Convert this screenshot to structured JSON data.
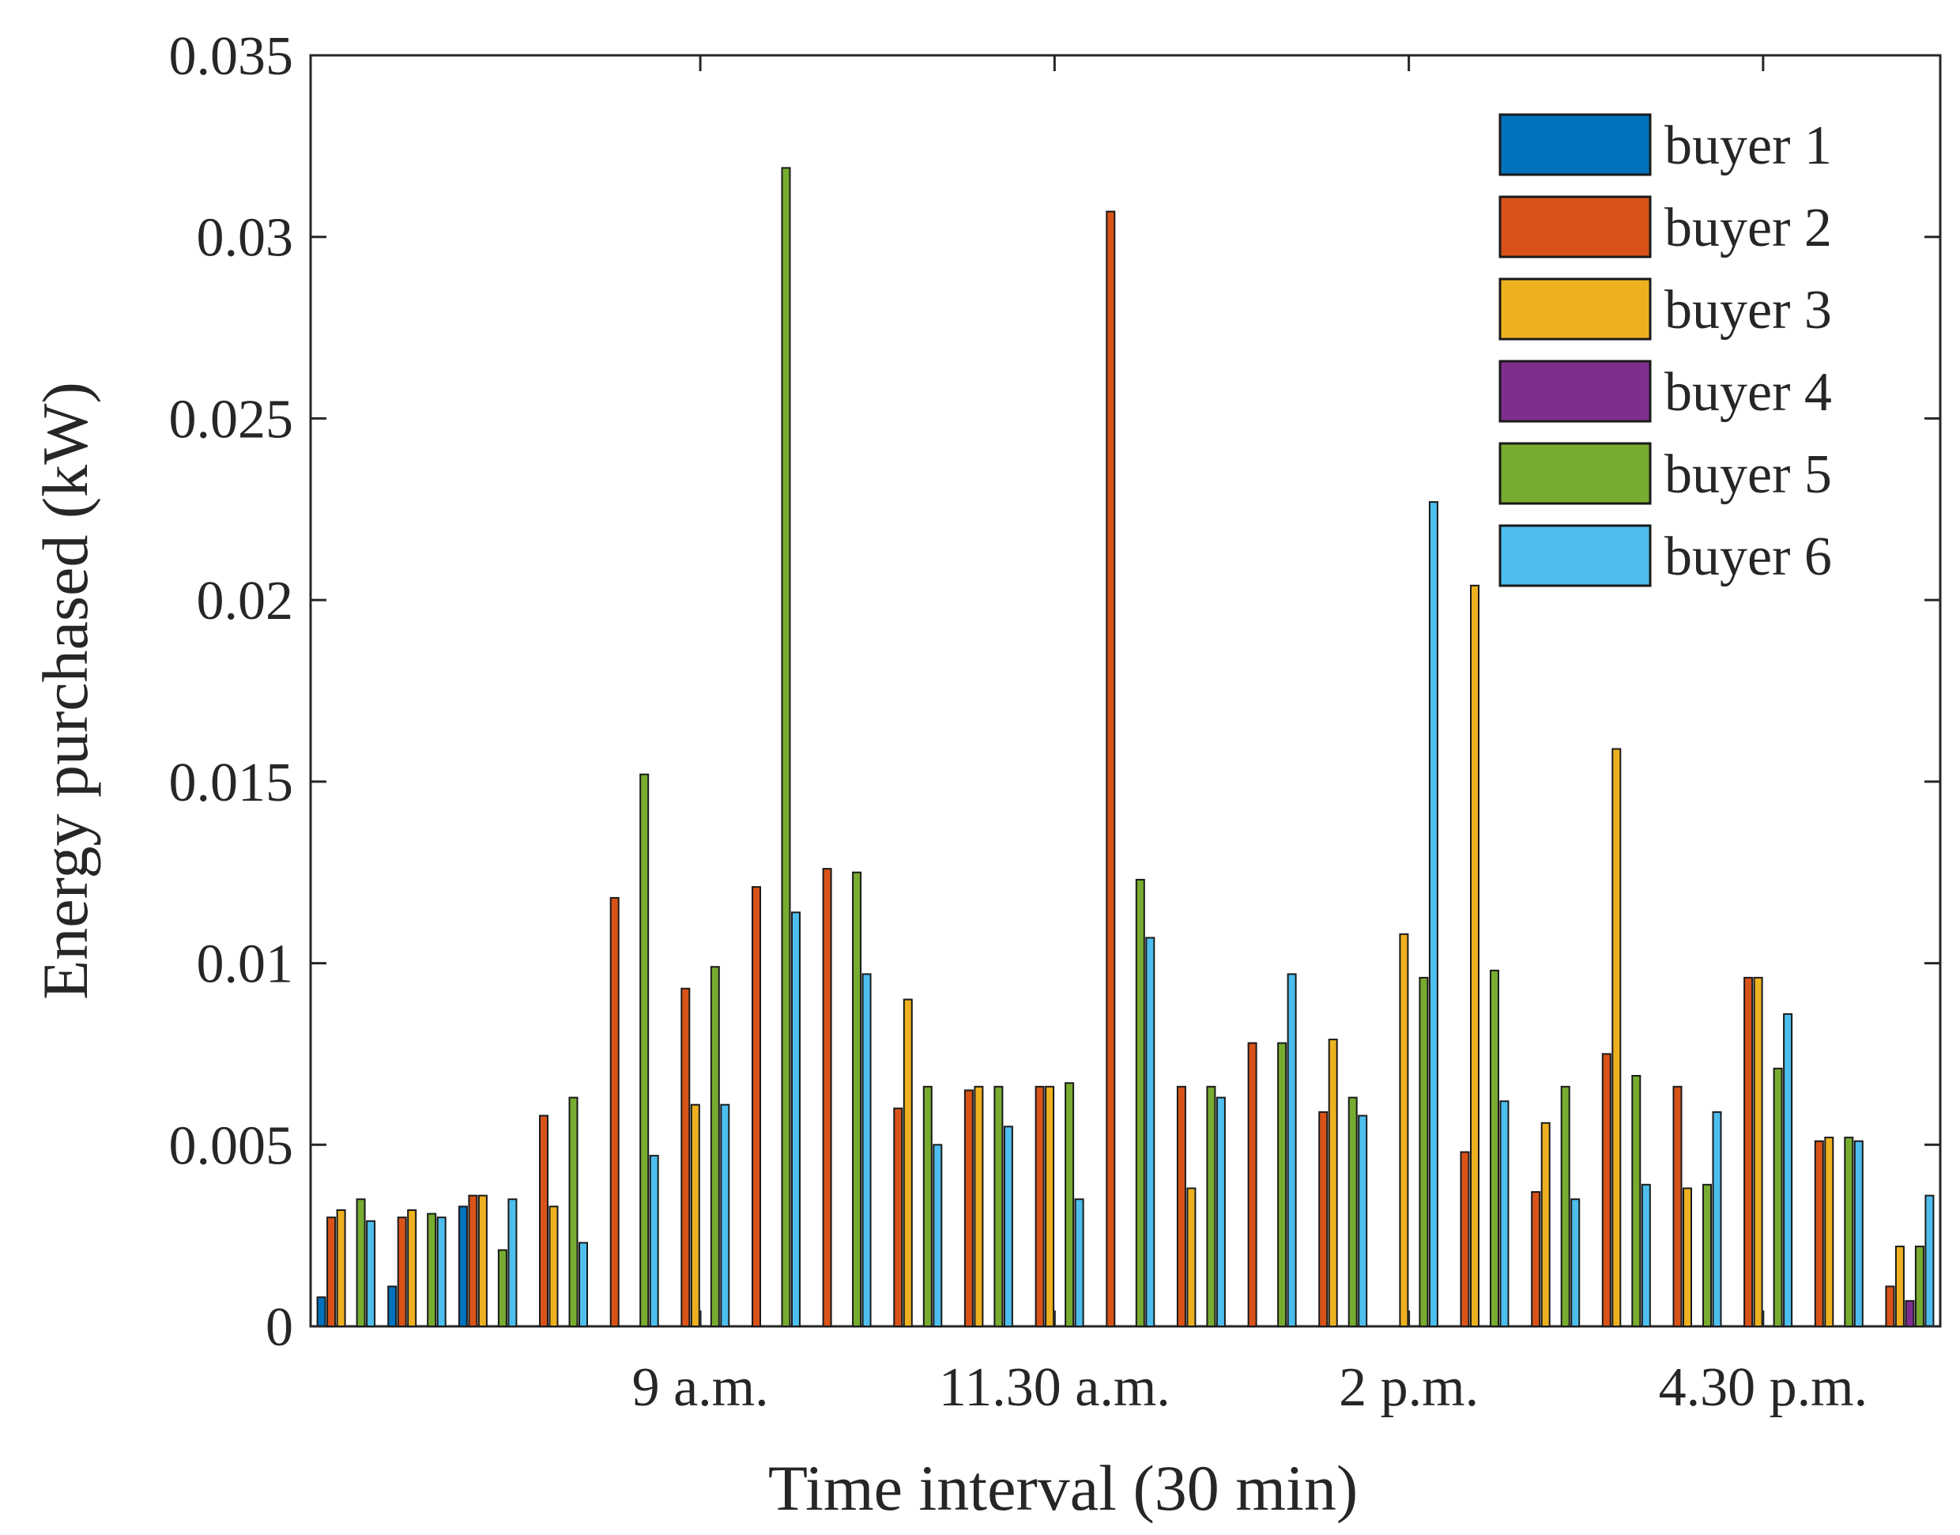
{
  "chart_data": {
    "type": "bar",
    "xlabel": "Time interval (30 min)",
    "ylabel": "Energy purchased (kW)",
    "ylim": [
      0,
      0.035
    ],
    "yticks": [
      0,
      0.005,
      0.01,
      0.015,
      0.02,
      0.025,
      0.03,
      0.035
    ],
    "ytick_labels": [
      "0",
      "0.005",
      "0.01",
      "0.015",
      "0.02",
      "0.025",
      "0.03",
      "0.035"
    ],
    "xtick_labels": [
      {
        "label": "9 a.m.",
        "index": 5
      },
      {
        "label": "11.30 a.m.",
        "index": 10
      },
      {
        "label": "2 p.m.",
        "index": 15
      },
      {
        "label": "4.30 p.m.",
        "index": 20
      }
    ],
    "grid": false,
    "legend_position": "top-right",
    "num_intervals": 23,
    "series": [
      {
        "name": "buyer 1",
        "color": "#0072BD",
        "values": [
          0.0008,
          0.0011,
          0.0033,
          0,
          0,
          0,
          0,
          0,
          0,
          0,
          0,
          0,
          0,
          0,
          0,
          0,
          0,
          0,
          0,
          0,
          0,
          0,
          0
        ]
      },
      {
        "name": "buyer 2",
        "color": "#D95319",
        "values": [
          0.003,
          0.003,
          0.0036,
          0.0058,
          0.0118,
          0.0093,
          0.0121,
          0.0126,
          0.006,
          0.0065,
          0.0066,
          0.0307,
          0.0066,
          0.0078,
          0.0059,
          0,
          0.0048,
          0.0037,
          0.0075,
          0.0066,
          0.0096,
          0.0051,
          0.0011
        ]
      },
      {
        "name": "buyer 3",
        "color": "#EDB120",
        "values": [
          0.0032,
          0.0032,
          0.0036,
          0.0033,
          0,
          0.0061,
          0,
          0,
          0.009,
          0.0066,
          0.0066,
          0,
          0.0038,
          0,
          0.0079,
          0.0108,
          0.0204,
          0.0056,
          0.0159,
          0.0038,
          0.0096,
          0.0052,
          0.0022
        ]
      },
      {
        "name": "buyer 4",
        "color": "#7E2F8E",
        "values": [
          0,
          0,
          0,
          0,
          0,
          0,
          0,
          0,
          0,
          0,
          0,
          0,
          0,
          0,
          0,
          0,
          0,
          0,
          0,
          0,
          0,
          0,
          0.0007
        ]
      },
      {
        "name": "buyer 5",
        "color": "#77AC30",
        "values": [
          0.0035,
          0.0031,
          0.0021,
          0.0063,
          0.0152,
          0.0099,
          0.0319,
          0.0125,
          0.0066,
          0.0066,
          0.0067,
          0.0123,
          0.0066,
          0.0078,
          0.0063,
          0.0096,
          0.0098,
          0.0066,
          0.0069,
          0.0039,
          0.0071,
          0.0052,
          0.0022
        ]
      },
      {
        "name": "buyer 6",
        "color": "#4DBEEE",
        "values": [
          0.0029,
          0.003,
          0.0035,
          0.0023,
          0.0047,
          0.0061,
          0.0114,
          0.0097,
          0.005,
          0.0055,
          0.0035,
          0.0107,
          0.0063,
          0.0097,
          0.0058,
          0.0227,
          0.0062,
          0.0035,
          0.0039,
          0.0059,
          0.0086,
          0.0051,
          0.0036
        ]
      }
    ]
  }
}
